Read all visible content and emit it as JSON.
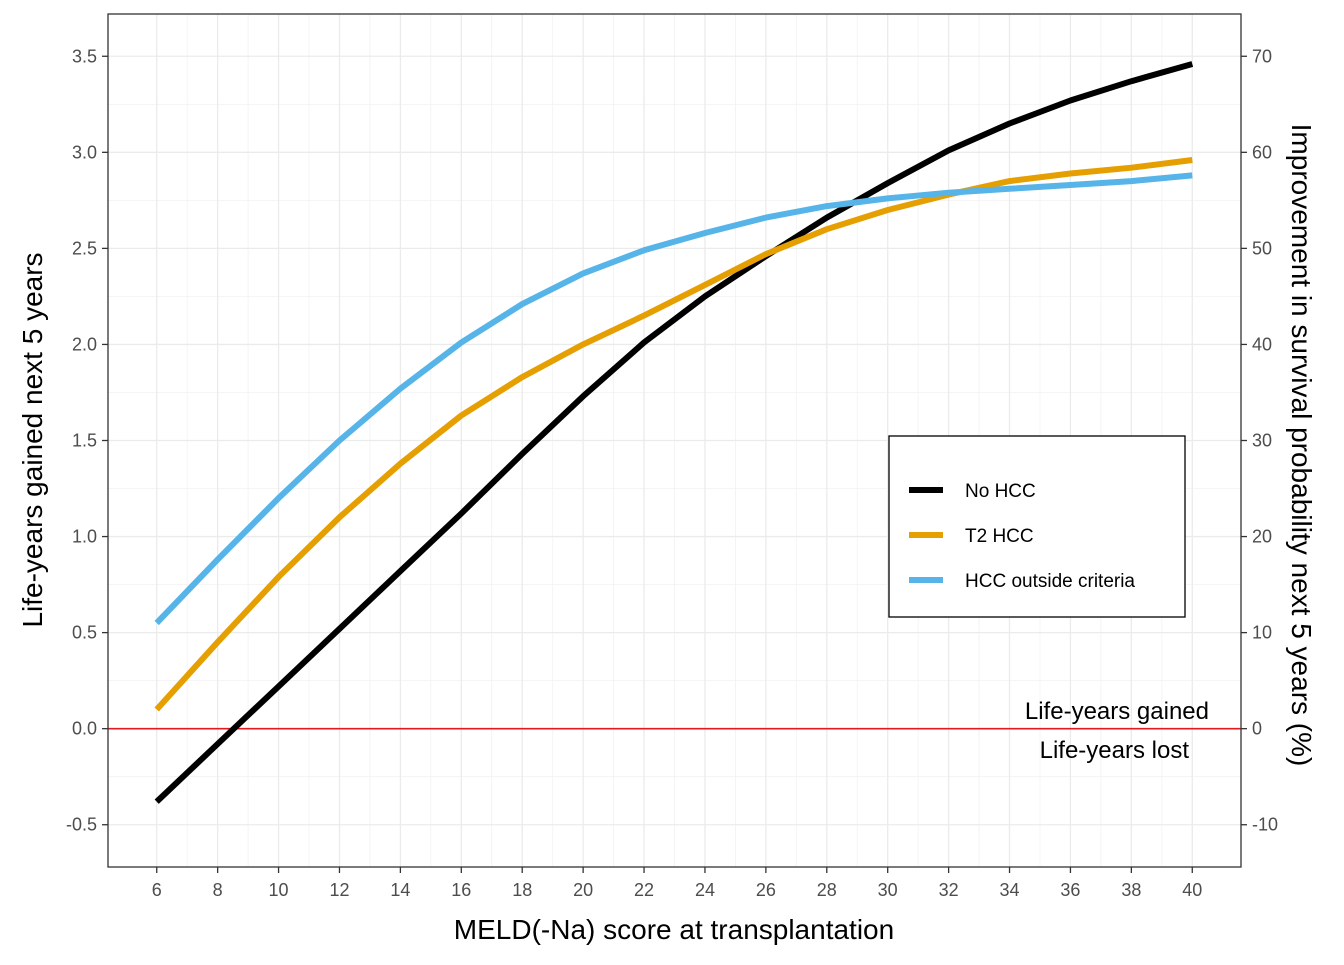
{
  "chart_data": {
    "type": "line",
    "xlabel": "MELD(-Na) score at transplantation",
    "ylabel": "Life-years gained next 5 years",
    "y2label": "Improvement in survival probability next 5 years (%)",
    "xlim": [
      4.4,
      41.6
    ],
    "ylim": [
      -0.72,
      3.72
    ],
    "y2lim": [
      -14.4,
      74.4
    ],
    "x_ticks": [
      "6",
      "8",
      "10",
      "12",
      "14",
      "16",
      "18",
      "20",
      "22",
      "24",
      "26",
      "28",
      "30",
      "32",
      "34",
      "36",
      "38",
      "40"
    ],
    "x_tick_values": [
      6,
      8,
      10,
      12,
      14,
      16,
      18,
      20,
      22,
      24,
      26,
      28,
      30,
      32,
      34,
      36,
      38,
      40
    ],
    "y_ticks": [
      "-0.5",
      "0.0",
      "0.5",
      "1.0",
      "1.5",
      "2.0",
      "2.5",
      "3.0",
      "3.5"
    ],
    "y_tick_values": [
      -0.5,
      0,
      0.5,
      1,
      1.5,
      2,
      2.5,
      3,
      3.5
    ],
    "y2_ticks": [
      "-10",
      "0",
      "10",
      "20",
      "30",
      "40",
      "50",
      "60",
      "70"
    ],
    "y2_tick_values": [
      -10,
      0,
      10,
      20,
      30,
      40,
      50,
      60,
      70
    ],
    "grid": true,
    "legend_position": "right-middle",
    "reference_line": {
      "y": 0,
      "color": "#e31a1c"
    },
    "annotations": {
      "above": "Life-years gained",
      "below": "Life-years lost"
    },
    "x": [
      6,
      8,
      10,
      12,
      14,
      16,
      18,
      20,
      22,
      24,
      26,
      28,
      30,
      32,
      34,
      36,
      38,
      40
    ],
    "series": [
      {
        "name": "No HCC",
        "color": "#000000",
        "values": [
          -0.38,
          -0.08,
          0.22,
          0.52,
          0.82,
          1.12,
          1.43,
          1.73,
          2.01,
          2.25,
          2.46,
          2.66,
          2.84,
          3.01,
          3.15,
          3.27,
          3.37,
          3.46
        ]
      },
      {
        "name": "T2 HCC",
        "color": "#e69f00",
        "values": [
          0.1,
          0.45,
          0.79,
          1.1,
          1.38,
          1.63,
          1.83,
          2.0,
          2.15,
          2.31,
          2.47,
          2.6,
          2.7,
          2.78,
          2.85,
          2.89,
          2.92,
          2.96
        ]
      },
      {
        "name": "HCC outside criteria",
        "color": "#56b4e9",
        "values": [
          0.55,
          0.88,
          1.2,
          1.5,
          1.77,
          2.01,
          2.21,
          2.37,
          2.49,
          2.58,
          2.66,
          2.72,
          2.76,
          2.79,
          2.81,
          2.83,
          2.85,
          2.88
        ]
      }
    ]
  }
}
